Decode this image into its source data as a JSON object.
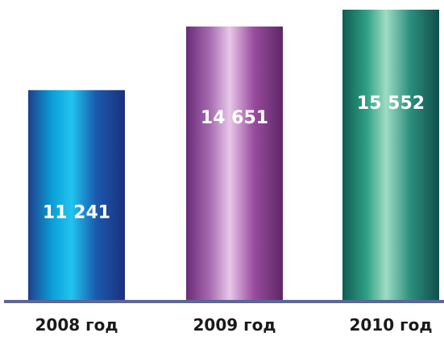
{
  "chart_data": {
    "type": "bar",
    "categories": [
      "2008 год",
      "2009 год",
      "2010 год"
    ],
    "values": [
      11241,
      14651,
      15552
    ],
    "value_labels": [
      "11 241",
      "14 651",
      "15 552"
    ],
    "title": "",
    "xlabel": "",
    "ylabel": "",
    "ylim": [
      0,
      15552
    ],
    "grid": false,
    "legend": "none",
    "bar_gradients": [
      [
        "#1f3f8c",
        "#0aa0d8",
        "#21c4ee",
        "#1a5aae",
        "#1d2f7e"
      ],
      [
        "#6a2a78",
        "#a86cb2",
        "#e7c7e8",
        "#9a4c9e",
        "#5d2766"
      ],
      [
        "#0f5e52",
        "#2f9f84",
        "#9fdcc4",
        "#2b8f7c",
        "#0f4f4c"
      ]
    ],
    "axis_color": "#5b6796"
  }
}
